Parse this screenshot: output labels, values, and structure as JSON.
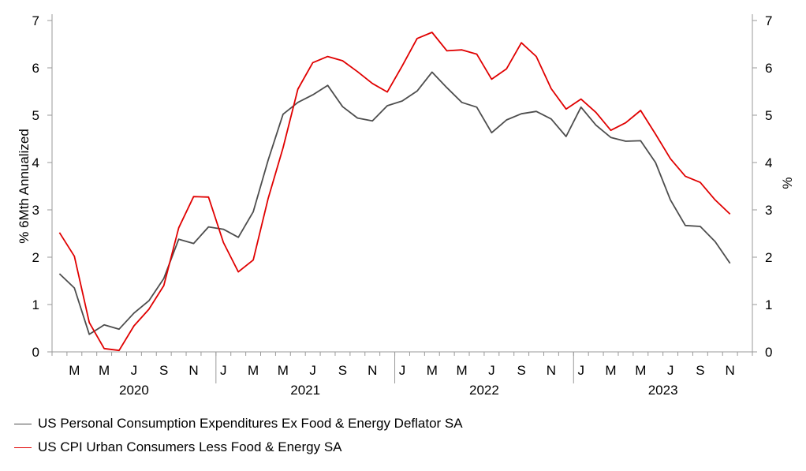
{
  "chart_data": {
    "type": "line",
    "ylabel_left": "% 6Mth Annualized",
    "ylabel_right": "%",
    "ylim": [
      0,
      7
    ],
    "yticks": [
      0,
      1,
      2,
      3,
      4,
      5,
      6,
      7
    ],
    "grid": false,
    "legend_position": "bottom-left",
    "x_month_labels": [
      "M",
      "M",
      "J",
      "S",
      "N",
      "J",
      "M",
      "M",
      "J",
      "S",
      "N",
      "J",
      "M",
      "M",
      "J",
      "S",
      "N",
      "J",
      "M",
      "M",
      "J",
      "S",
      "N"
    ],
    "x_year_labels": [
      "2020",
      "2021",
      "2022",
      "2023"
    ],
    "x_start": "2020-02",
    "x_end": "2023-12",
    "series": [
      {
        "name": "US Personal Consumption Expenditures Ex Food & Energy Deflator SA",
        "color": "#4d4d4d",
        "x": [
          "2020-02",
          "2020-03",
          "2020-04",
          "2020-05",
          "2020-06",
          "2020-07",
          "2020-08",
          "2020-09",
          "2020-10",
          "2020-11",
          "2020-12",
          "2021-01",
          "2021-02",
          "2021-03",
          "2021-04",
          "2021-05",
          "2021-06",
          "2021-07",
          "2021-08",
          "2021-09",
          "2021-10",
          "2021-11",
          "2021-12",
          "2022-01",
          "2022-02",
          "2022-03",
          "2022-04",
          "2022-05",
          "2022-06",
          "2022-07",
          "2022-08",
          "2022-09",
          "2022-10",
          "2022-11",
          "2022-12",
          "2023-01",
          "2023-02",
          "2023-03",
          "2023-04",
          "2023-05",
          "2023-06",
          "2023-07",
          "2023-08",
          "2023-09",
          "2023-10",
          "2023-11"
        ],
        "values": [
          1.65,
          1.35,
          0.37,
          0.57,
          0.48,
          0.82,
          1.08,
          1.55,
          2.38,
          2.29,
          2.64,
          2.59,
          2.42,
          2.96,
          4.05,
          5.02,
          5.27,
          5.43,
          5.63,
          5.18,
          4.94,
          4.88,
          5.2,
          5.3,
          5.51,
          5.91,
          5.58,
          5.27,
          5.17,
          4.63,
          4.9,
          5.03,
          5.08,
          4.92,
          4.55,
          5.17,
          4.79,
          4.53,
          4.45,
          4.46,
          4.0,
          3.21,
          2.67,
          2.65,
          2.33,
          1.87
        ]
      },
      {
        "name": "US CPI Urban Consumers Less Food & Energy SA",
        "color": "#e00000",
        "x": [
          "2020-02",
          "2020-03",
          "2020-04",
          "2020-05",
          "2020-06",
          "2020-07",
          "2020-08",
          "2020-09",
          "2020-10",
          "2020-11",
          "2020-12",
          "2021-01",
          "2021-02",
          "2021-03",
          "2021-04",
          "2021-05",
          "2021-06",
          "2021-07",
          "2021-08",
          "2021-09",
          "2021-10",
          "2021-11",
          "2021-12",
          "2022-01",
          "2022-02",
          "2022-03",
          "2022-04",
          "2022-05",
          "2022-06",
          "2022-07",
          "2022-08",
          "2022-09",
          "2022-10",
          "2022-11",
          "2022-12",
          "2023-01",
          "2023-02",
          "2023-03",
          "2023-04",
          "2023-05",
          "2023-06",
          "2023-07",
          "2023-08",
          "2023-09",
          "2023-10",
          "2023-11"
        ],
        "values": [
          2.52,
          2.02,
          0.62,
          0.07,
          0.03,
          0.55,
          0.9,
          1.4,
          2.62,
          3.28,
          3.27,
          2.31,
          1.69,
          1.94,
          3.24,
          4.31,
          5.55,
          6.11,
          6.24,
          6.15,
          5.92,
          5.67,
          5.49,
          6.04,
          6.62,
          6.75,
          6.36,
          6.38,
          6.29,
          5.76,
          5.98,
          6.53,
          6.24,
          5.56,
          5.13,
          5.34,
          5.06,
          4.68,
          4.84,
          5.1,
          4.6,
          4.08,
          3.71,
          3.58,
          3.21,
          2.91
        ]
      }
    ]
  }
}
